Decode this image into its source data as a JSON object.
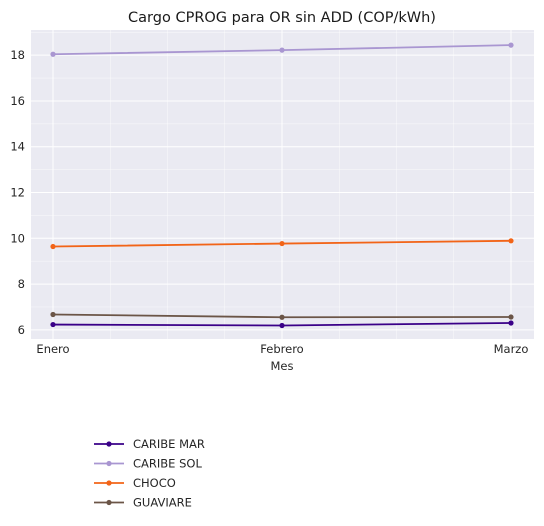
{
  "chart_data": {
    "type": "line",
    "title": "Cargo CPROG para OR sin ADD (COP/kWh)",
    "xlabel": "Mes",
    "ylabel": "",
    "categories": [
      "Enero",
      "Febrero",
      "Marzo"
    ],
    "ylim": [
      5.6,
      19.1
    ],
    "yticks": [
      6,
      8,
      10,
      12,
      14,
      16,
      18
    ],
    "grid": true,
    "legend_position": "bottom-left outside",
    "series": [
      {
        "name": "CARIBE MAR",
        "color": "#3a0088",
        "values": [
          6.23,
          6.19,
          6.3
        ]
      },
      {
        "name": "CARIBE SOL",
        "color": "#a996d1",
        "values": [
          18.04,
          18.22,
          18.44
        ]
      },
      {
        "name": "CHOCO",
        "color": "#f26418",
        "values": [
          9.64,
          9.77,
          9.89
        ]
      },
      {
        "name": "GUAVIARE",
        "color": "#6b5547",
        "values": [
          6.67,
          6.55,
          6.56
        ]
      }
    ]
  }
}
